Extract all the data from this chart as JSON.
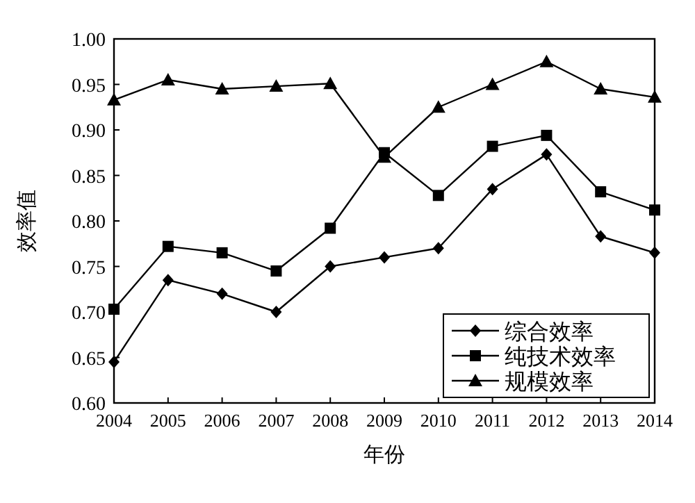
{
  "chart_data": {
    "type": "line",
    "xlabel": "年份",
    "ylabel": "效率值",
    "x": [
      2004,
      2005,
      2006,
      2007,
      2008,
      2009,
      2010,
      2011,
      2012,
      2013,
      2014
    ],
    "xlim": [
      2004,
      2014
    ],
    "xticks": [
      2004,
      2005,
      2006,
      2007,
      2008,
      2009,
      2010,
      2011,
      2012,
      2013,
      2014
    ],
    "ylim": [
      0.6,
      1.0
    ],
    "yticks": [
      {
        "value": 0.6,
        "label": "0.60"
      },
      {
        "value": 0.65,
        "label": "0.65"
      },
      {
        "value": 0.7,
        "label": "0.70"
      },
      {
        "value": 0.75,
        "label": "0.75"
      },
      {
        "value": 0.8,
        "label": "0.80"
      },
      {
        "value": 0.85,
        "label": "0.85"
      },
      {
        "value": 0.9,
        "label": "0.90"
      },
      {
        "value": 0.95,
        "label": "0.95"
      },
      {
        "value": 1.0,
        "label": "1.00"
      }
    ],
    "legend": "bottom right",
    "series": [
      {
        "name": "综合效率",
        "color": "#000000",
        "marker": "diamond",
        "values": [
          0.645,
          0.735,
          0.72,
          0.7,
          0.75,
          0.76,
          0.77,
          0.835,
          0.873,
          0.783,
          0.765
        ]
      },
      {
        "name": "纯技术效率",
        "color": "#000000",
        "marker": "square",
        "values": [
          0.703,
          0.772,
          0.765,
          0.745,
          0.792,
          0.875,
          0.828,
          0.882,
          0.894,
          0.832,
          0.812
        ]
      },
      {
        "name": "规模效率",
        "color": "#000000",
        "marker": "triangle",
        "values": [
          0.933,
          0.955,
          0.945,
          0.948,
          0.951,
          0.87,
          0.925,
          0.95,
          0.975,
          0.945,
          0.936
        ]
      }
    ]
  }
}
